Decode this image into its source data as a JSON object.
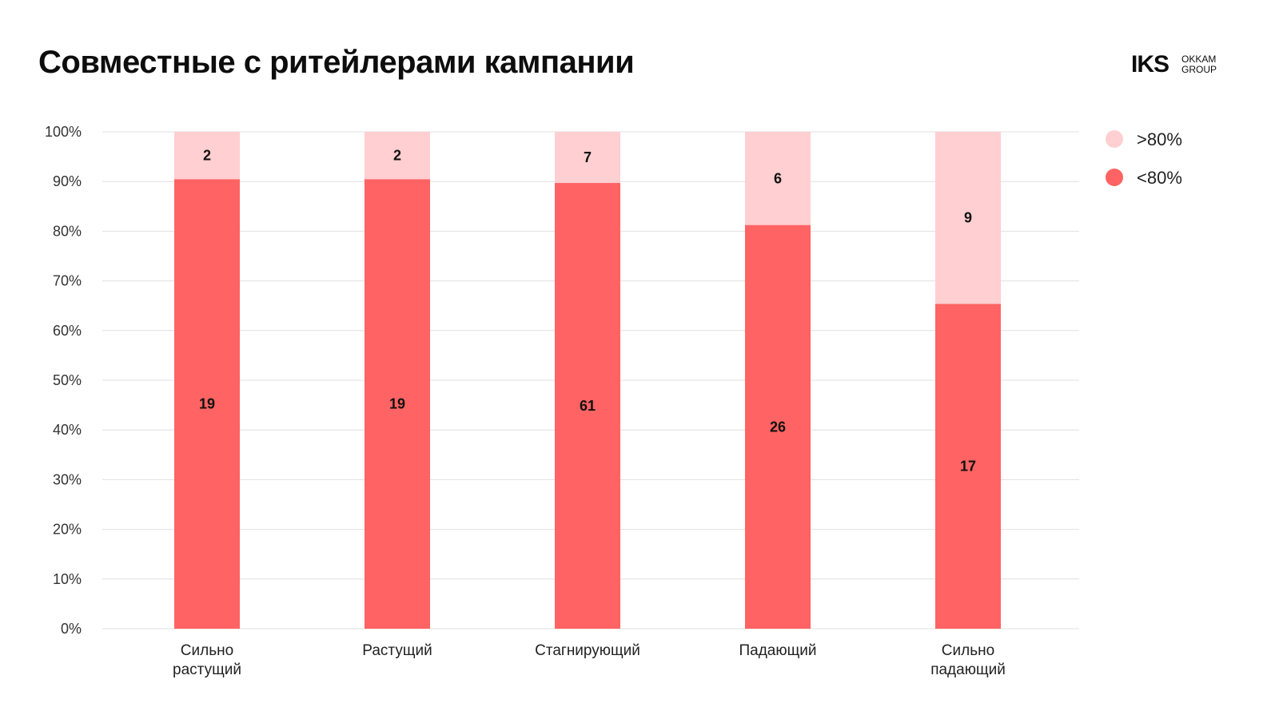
{
  "title": "Совместные с ритейлерами кампании",
  "logo": {
    "mark": "IKS",
    "line1": "OKKAM",
    "line2": "GROUP"
  },
  "colors": {
    "below80": "#ff6363",
    "above80": "#ffcfd1",
    "grid": "#e0e0e0"
  },
  "chart_data": {
    "type": "bar",
    "stacked": true,
    "percent": true,
    "categories": [
      [
        "Сильно",
        "растущий"
      ],
      [
        "Растущий"
      ],
      [
        "Стагнирующий"
      ],
      [
        "Падающий"
      ],
      [
        "Сильно",
        "падающий"
      ]
    ],
    "series": [
      {
        "name": "<80%",
        "values": [
          19,
          19,
          61,
          26,
          17
        ]
      },
      {
        "name": ">80%",
        "values": [
          2,
          2,
          7,
          6,
          9
        ]
      }
    ],
    "legend_order": [
      ">80%",
      "<80%"
    ],
    "y_ticks": [
      "0%",
      "10%",
      "20%",
      "30%",
      "40%",
      "50%",
      "60%",
      "70%",
      "80%",
      "90%",
      "100%"
    ],
    "ylim": [
      0,
      100
    ],
    "grid": true,
    "legend_position": "top-right"
  }
}
